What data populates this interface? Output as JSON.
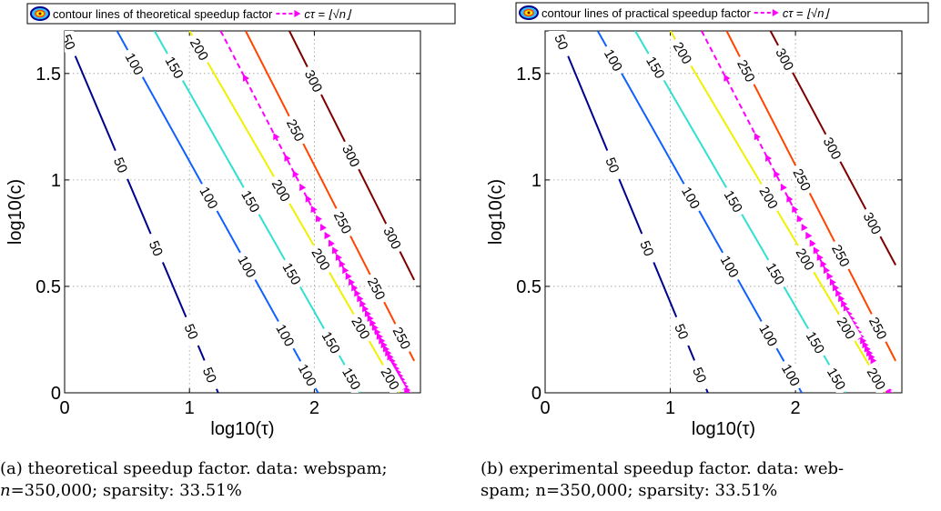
{
  "chart_data": [
    {
      "type": "line",
      "subtype": "contour",
      "title": "",
      "xlabel": "log10(τ)",
      "ylabel": "log10(c)",
      "xlim": [
        0,
        2.85
      ],
      "ylim": [
        0,
        1.7
      ],
      "xticks": [
        "0",
        "1",
        "2"
      ],
      "yticks": [
        "0",
        "0.5",
        "1",
        "1.5"
      ],
      "grid": true,
      "legend_position": "top",
      "legend": [
        "contour lines of theoretical speedup factor",
        "cτ = ⌊√n⌋"
      ],
      "series": [
        {
          "level": "50",
          "color": "#00008f",
          "x": [
            0,
            1.23
          ],
          "y": [
            1.7,
            0
          ]
        },
        {
          "level": "100",
          "color": "#1060ff",
          "x": [
            0.42,
            2.03
          ],
          "y": [
            1.7,
            0
          ]
        },
        {
          "level": "150",
          "color": "#30e0d0",
          "x": [
            0.72,
            2.37
          ],
          "y": [
            1.7,
            0
          ]
        },
        {
          "level": "200",
          "color": "#f0f000",
          "x": [
            1.0,
            2.68
          ],
          "y": [
            1.7,
            0
          ]
        },
        {
          "level": "250",
          "color": "#ff4500",
          "x": [
            1.45,
            2.8
          ],
          "y": [
            1.7,
            0.15
          ]
        },
        {
          "level": "300",
          "color": "#800000",
          "x": [
            1.8,
            2.8
          ],
          "y": [
            1.7,
            0.53
          ]
        }
      ],
      "guide": {
        "color": "#ff00ff",
        "x": [
          1.25,
          2.75
        ],
        "y": [
          1.7,
          0
        ]
      },
      "level_label_positions": [
        {
          "level": "50",
          "t": [
            0.03,
            0.37,
            0.6,
            0.83,
            0.95
          ]
        },
        {
          "level": "100",
          "t": [
            0.09,
            0.46,
            0.65,
            0.84,
            0.95
          ]
        },
        {
          "level": "150",
          "t": [
            0.1,
            0.47,
            0.67,
            0.86,
            0.96
          ]
        },
        {
          "level": "200",
          "t": [
            0.05,
            0.44,
            0.63,
            0.82,
            0.96
          ]
        },
        {
          "level": "250",
          "t": [
            0.3,
            0.58,
            0.78,
            0.93
          ]
        },
        {
          "level": "300",
          "t": [
            0.2,
            0.5,
            0.83
          ]
        }
      ]
    },
    {
      "type": "line",
      "subtype": "contour",
      "title": "",
      "xlabel": "log10(τ)",
      "ylabel": "log10(c)",
      "xlim": [
        0,
        2.85
      ],
      "ylim": [
        0,
        1.7
      ],
      "xticks": [
        "0",
        "1",
        "2"
      ],
      "yticks": [
        "0",
        "0.5",
        "1",
        "1.5"
      ],
      "grid": true,
      "legend_position": "top",
      "legend": [
        "contour lines of practical speedup factor",
        "cτ = ⌊√n⌋"
      ],
      "series": [
        {
          "level": "50",
          "color": "#00008f",
          "x": [
            0.1,
            1.3
          ],
          "y": [
            1.7,
            0
          ]
        },
        {
          "level": "100",
          "color": "#1060ff",
          "x": [
            0.42,
            2.05
          ],
          "y": [
            1.7,
            0
          ]
        },
        {
          "level": "150",
          "color": "#30e0d0",
          "x": [
            0.72,
            2.4
          ],
          "y": [
            1.7,
            0
          ]
        },
        {
          "level": "200",
          "color": "#f0f000",
          "x": [
            1.0,
            2.72
          ],
          "y": [
            1.7,
            0
          ]
        },
        {
          "level": "250",
          "color": "#ff4500",
          "x": [
            1.45,
            2.8
          ],
          "y": [
            1.7,
            0.15
          ]
        },
        {
          "level": "300",
          "color": "#800000",
          "x": [
            1.8,
            2.8
          ],
          "y": [
            1.7,
            0.6
          ]
        }
      ],
      "guide": {
        "color": "#ff00ff",
        "x": [
          1.25,
          2.75
        ],
        "y": [
          1.7,
          0
        ]
      },
      "level_label_positions": [
        {
          "level": "50",
          "t": [
            0.03,
            0.37,
            0.6,
            0.83,
            0.95
          ]
        },
        {
          "level": "100",
          "t": [
            0.08,
            0.46,
            0.65,
            0.84,
            0.95
          ]
        },
        {
          "level": "150",
          "t": [
            0.1,
            0.47,
            0.67,
            0.86,
            0.96
          ]
        },
        {
          "level": "200",
          "t": [
            0.06,
            0.46,
            0.63,
            0.82,
            0.96
          ]
        },
        {
          "level": "250",
          "t": [
            0.12,
            0.45,
            0.68,
            0.9
          ]
        },
        {
          "level": "300",
          "t": [
            0.12,
            0.5,
            0.82
          ]
        }
      ]
    }
  ],
  "captions": [
    {
      "label": "(a)",
      "text": "theoretical speedup factor. data: webspam;",
      "detail_prefix": "n",
      "detail": "=350,000; sparsity: 33.51%"
    },
    {
      "label": "(b)",
      "text": "experimental speedup factor. data: web-",
      "detail_prefix": "spam; n",
      "detail": "=350,000; sparsity: 33.51%"
    }
  ]
}
